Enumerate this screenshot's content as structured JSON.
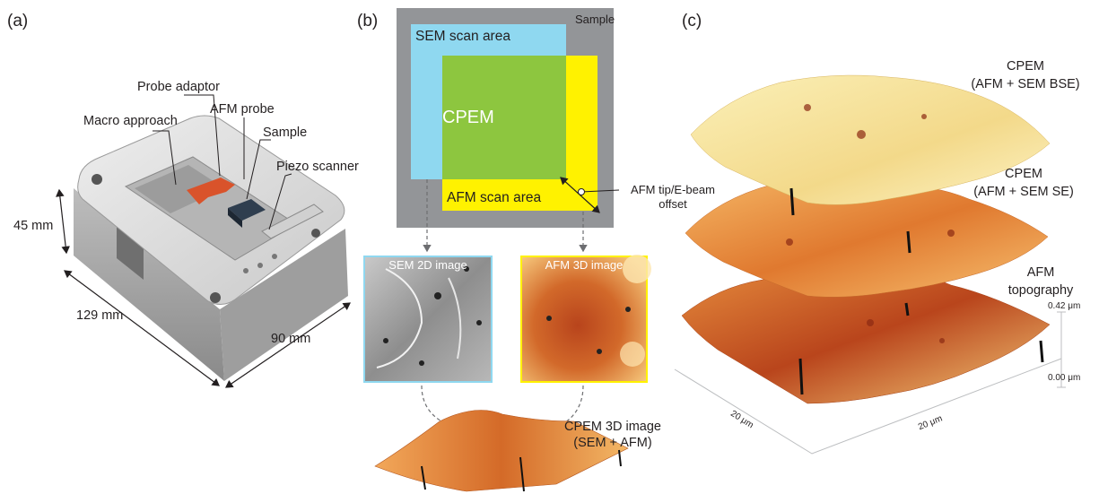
{
  "panels": {
    "a": {
      "label": "(a)",
      "callouts": {
        "probe_adaptor": "Probe adaptor",
        "macro_approach": "Macro approach",
        "afm_probe": "AFM probe",
        "sample": "Sample",
        "piezo_scanner": "Piezo scanner"
      },
      "dimensions": {
        "height": "45 mm",
        "length": "129 mm",
        "width": "90 mm"
      }
    },
    "b": {
      "label": "(b)",
      "sample": "Sample",
      "sem_scan_area": "SEM scan area",
      "cpem": "CPEM",
      "afm_scan_area": "AFM scan area",
      "offset_line1": "AFM tip/E-beam",
      "offset_line2": "offset",
      "sem_image": "SEM 2D image",
      "afm_image": "AFM 3D image",
      "cpem_3d_line1": "CPEM 3D image",
      "cpem_3d_line2": "(SEM + AFM)"
    },
    "c": {
      "label": "(c)",
      "layer1_line1": "CPEM",
      "layer1_line2": "(AFM + SEM BSE)",
      "layer2_line1": "CPEM",
      "layer2_line2": "(AFM + SEM SE)",
      "layer3_line1": "AFM",
      "layer3_line2": "topography",
      "z_max": "0.42 μm",
      "z_min": "0.00 μm",
      "x_axis": "20 μm",
      "y_axis": "20 μm"
    }
  },
  "colors": {
    "sample_gray": "#939598",
    "sem_blue": "#8fd8f0",
    "cpem_green": "#8dc63f",
    "afm_yellow": "#fff200",
    "surface_light": "#f7e7a4",
    "surface_mid": "#e07a2e",
    "surface_dark": "#b8441c"
  }
}
